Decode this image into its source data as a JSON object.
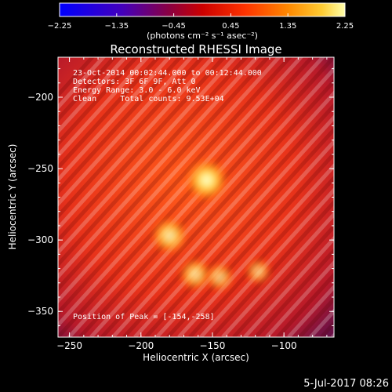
{
  "chart_data": {
    "type": "heatmap",
    "title": "Reconstructed RHESSI Image",
    "xlabel": "Heliocentric X (arcsec)",
    "ylabel": "Heliocentric Y (arcsec)",
    "xlim": [
      -258,
      -65
    ],
    "ylim": [
      -368,
      -172
    ],
    "x_ticks": [
      -250,
      -200,
      -150,
      -100
    ],
    "x_tick_labels": [
      "−250",
      "−200",
      "−150",
      "−100"
    ],
    "y_ticks": [
      -200,
      -250,
      -300,
      -350
    ],
    "y_tick_labels": [
      "−200",
      "−250",
      "−300",
      "−350"
    ],
    "colorbar": {
      "range": [
        -2.25,
        2.25
      ],
      "ticks": [
        -2.25,
        -1.35,
        -0.45,
        0.45,
        1.35,
        2.25
      ],
      "tick_labels": [
        "−2.25",
        "−1.35",
        "−0.45",
        "0.45",
        "1.35",
        "2.25"
      ],
      "units_text": "(photons cm⁻² s⁻¹ asec⁻²)",
      "colors": [
        "#0000ff",
        "#5500aa",
        "#aa0000",
        "#ff3300",
        "#ff9900",
        "#ffff99"
      ]
    },
    "annotations": [
      "23-Oct-2014 00:02:44.000 to 00:12:44.000",
      "Detectors: 3F 6F 9F, Att 0",
      "Energy Range: 3.0 - 6.0 keV",
      "Clean     Total counts: 9.53E+04"
    ],
    "peak_label": "Position of Peak = [-154,-258]",
    "sources": [
      {
        "x": -154,
        "y": -258,
        "value": 2.2
      },
      {
        "x": -180,
        "y": -297,
        "value": 1.7
      },
      {
        "x": -162,
        "y": -324,
        "value": 1.4
      },
      {
        "x": -145,
        "y": -326,
        "value": 1.1
      },
      {
        "x": -118,
        "y": -322,
        "value": 0.9
      }
    ]
  },
  "footer": {
    "date_stamp": "5-Jul-2017 08:26"
  }
}
